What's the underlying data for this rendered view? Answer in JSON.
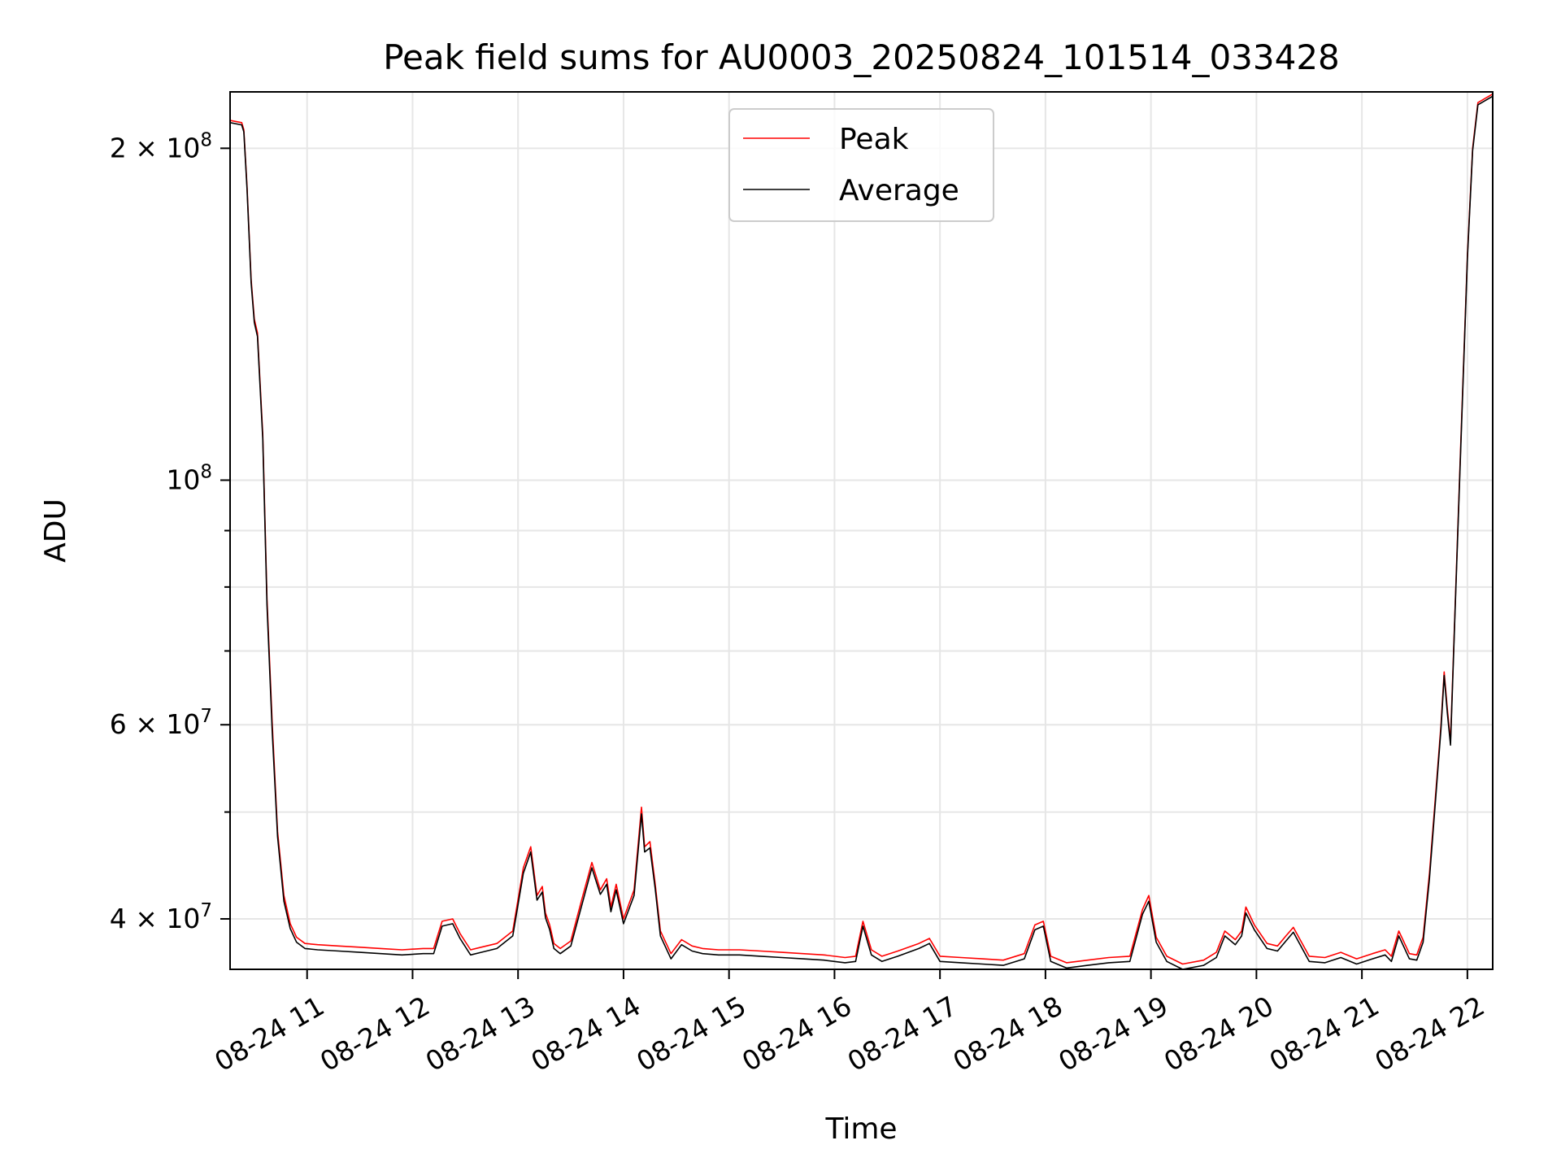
{
  "chart_data": {
    "type": "line",
    "title": "Peak field sums for AU0003_20250824_101514_033428",
    "xlabel": "Time",
    "ylabel": "ADU",
    "yscale": "log",
    "ylim": [
      36000000,
      225000000
    ],
    "xlim": [
      10.27,
      22.24
    ],
    "grid": true,
    "legend": "upper-center",
    "colors": {
      "Peak": "#ff0000",
      "Average": "#000000"
    },
    "x_ticks": [
      {
        "v": 11,
        "label": "08-24 11"
      },
      {
        "v": 12,
        "label": "08-24 12"
      },
      {
        "v": 13,
        "label": "08-24 13"
      },
      {
        "v": 14,
        "label": "08-24 14"
      },
      {
        "v": 15,
        "label": "08-24 15"
      },
      {
        "v": 16,
        "label": "08-24 16"
      },
      {
        "v": 17,
        "label": "08-24 17"
      },
      {
        "v": 18,
        "label": "08-24 18"
      },
      {
        "v": 19,
        "label": "08-24 19"
      },
      {
        "v": 20,
        "label": "08-24 20"
      },
      {
        "v": 21,
        "label": "08-24 21"
      },
      {
        "v": 22,
        "label": "08-24 22"
      }
    ],
    "y_major_ticks": [
      {
        "v": 40000000,
        "base": "4 × 10",
        "exp": "7"
      },
      {
        "v": 60000000,
        "base": "6 × 10",
        "exp": "7"
      },
      {
        "v": 100000000,
        "base": "10",
        "exp": "8"
      },
      {
        "v": 200000000,
        "base": "2 × 10",
        "exp": "8"
      }
    ],
    "y_minor_ticks": [
      50000000,
      70000000,
      80000000,
      90000000
    ],
    "series": [
      {
        "name": "Peak",
        "x": [
          10.27,
          10.38,
          10.4,
          10.43,
          10.47,
          10.5,
          10.53,
          10.58,
          10.62,
          10.67,
          10.72,
          10.78,
          10.84,
          10.9,
          10.98,
          11.1,
          11.3,
          11.5,
          11.7,
          11.9,
          12.1,
          12.2,
          12.28,
          12.38,
          12.45,
          12.55,
          12.65,
          12.8,
          12.95,
          13.05,
          13.12,
          13.18,
          13.23,
          13.26,
          13.3,
          13.34,
          13.4,
          13.5,
          13.6,
          13.7,
          13.78,
          13.84,
          13.88,
          13.93,
          14.0,
          14.1,
          14.17,
          14.2,
          14.25,
          14.3,
          14.35,
          14.45,
          14.55,
          14.65,
          14.75,
          14.9,
          15.1,
          15.3,
          15.5,
          15.7,
          15.9,
          16.1,
          16.2,
          16.27,
          16.35,
          16.45,
          16.6,
          16.8,
          16.9,
          17.0,
          17.2,
          17.4,
          17.6,
          17.8,
          17.9,
          17.98,
          18.05,
          18.2,
          18.4,
          18.6,
          18.8,
          18.92,
          18.98,
          19.05,
          19.15,
          19.3,
          19.5,
          19.62,
          19.7,
          19.8,
          19.86,
          19.9,
          19.98,
          20.1,
          20.2,
          20.28,
          20.35,
          20.5,
          20.65,
          20.8,
          20.95,
          21.1,
          21.22,
          21.28,
          21.35,
          21.45,
          21.52,
          21.58,
          21.64,
          21.7,
          21.75,
          21.78,
          21.81,
          21.84,
          21.88,
          21.94,
          22.0,
          22.05,
          22.1,
          22.24
        ],
        "y": [
          212000000,
          211000000,
          208000000,
          185000000,
          152000000,
          140000000,
          136000000,
          110000000,
          78000000,
          60000000,
          48000000,
          42000000,
          39600000,
          38500000,
          38000000,
          37900000,
          37800000,
          37700000,
          37600000,
          37500000,
          37600000,
          37600000,
          39800000,
          40000000,
          38800000,
          37500000,
          37700000,
          38000000,
          39000000,
          44500000,
          46500000,
          42000000,
          42800000,
          40500000,
          39500000,
          38000000,
          37600000,
          38200000,
          41500000,
          45000000,
          42500000,
          43500000,
          41000000,
          43000000,
          40000000,
          42500000,
          50500000,
          46500000,
          47000000,
          43000000,
          39000000,
          37200000,
          38300000,
          37800000,
          37600000,
          37500000,
          37500000,
          37400000,
          37300000,
          37200000,
          37100000,
          36900000,
          37000000,
          39800000,
          37500000,
          37000000,
          37400000,
          38000000,
          38400000,
          37000000,
          36900000,
          36800000,
          36700000,
          37200000,
          39500000,
          39800000,
          37000000,
          36500000,
          36700000,
          36900000,
          37000000,
          40800000,
          42000000,
          38500000,
          37000000,
          36400000,
          36700000,
          37300000,
          39000000,
          38300000,
          39000000,
          41000000,
          39500000,
          38000000,
          37800000,
          38600000,
          39300000,
          37000000,
          36900000,
          37300000,
          36800000,
          37200000,
          37500000,
          37000000,
          39000000,
          37200000,
          37100000,
          38500000,
          44000000,
          52000000,
          60000000,
          67000000,
          62000000,
          58000000,
          75000000,
          110000000,
          160000000,
          200000000,
          220000000,
          224000000
        ]
      },
      {
        "name": "Average",
        "x": [
          10.27,
          10.38,
          10.4,
          10.43,
          10.47,
          10.5,
          10.53,
          10.58,
          10.62,
          10.67,
          10.72,
          10.78,
          10.84,
          10.9,
          10.98,
          11.1,
          11.3,
          11.5,
          11.7,
          11.9,
          12.1,
          12.2,
          12.28,
          12.38,
          12.45,
          12.55,
          12.65,
          12.8,
          12.95,
          13.05,
          13.12,
          13.18,
          13.23,
          13.26,
          13.3,
          13.34,
          13.4,
          13.5,
          13.6,
          13.7,
          13.78,
          13.84,
          13.88,
          13.93,
          14.0,
          14.1,
          14.17,
          14.2,
          14.25,
          14.3,
          14.35,
          14.45,
          14.55,
          14.65,
          14.75,
          14.9,
          15.1,
          15.3,
          15.5,
          15.7,
          15.9,
          16.1,
          16.2,
          16.27,
          16.35,
          16.45,
          16.6,
          16.8,
          16.9,
          17.0,
          17.2,
          17.4,
          17.6,
          17.8,
          17.9,
          17.98,
          18.05,
          18.2,
          18.4,
          18.6,
          18.8,
          18.92,
          18.98,
          19.05,
          19.15,
          19.3,
          19.5,
          19.62,
          19.7,
          19.8,
          19.86,
          19.9,
          19.98,
          20.1,
          20.2,
          20.28,
          20.35,
          20.5,
          20.65,
          20.8,
          20.95,
          21.1,
          21.22,
          21.28,
          21.35,
          21.45,
          21.52,
          21.58,
          21.64,
          21.7,
          21.75,
          21.78,
          21.81,
          21.84,
          21.88,
          21.94,
          22.0,
          22.05,
          22.1,
          22.24
        ],
        "y": [
          211000000,
          210000000,
          207000000,
          184000000,
          151000000,
          139000000,
          135000000,
          109000000,
          77000000,
          59000000,
          47500000,
          41500000,
          39200000,
          38100000,
          37600000,
          37500000,
          37400000,
          37300000,
          37200000,
          37100000,
          37200000,
          37200000,
          39400000,
          39600000,
          38400000,
          37100000,
          37300000,
          37600000,
          38600000,
          44000000,
          46000000,
          41600000,
          42300000,
          40100000,
          39100000,
          37600000,
          37200000,
          37800000,
          41000000,
          44500000,
          42100000,
          43000000,
          40600000,
          42500000,
          39600000,
          42000000,
          49800000,
          46000000,
          46400000,
          42600000,
          38600000,
          36800000,
          37900000,
          37400000,
          37200000,
          37100000,
          37100000,
          37000000,
          36900000,
          36800000,
          36700000,
          36500000,
          36600000,
          39400000,
          37100000,
          36600000,
          37000000,
          37600000,
          38000000,
          36600000,
          36500000,
          36400000,
          36300000,
          36800000,
          39100000,
          39400000,
          36600000,
          36100000,
          36300000,
          36500000,
          36600000,
          40400000,
          41500000,
          38100000,
          36600000,
          36000000,
          36300000,
          36900000,
          38600000,
          37900000,
          38600000,
          40500000,
          39100000,
          37600000,
          37400000,
          38200000,
          38900000,
          36600000,
          36500000,
          36900000,
          36400000,
          36800000,
          37100000,
          36600000,
          38600000,
          36800000,
          36700000,
          38100000,
          43500000,
          51500000,
          59500000,
          66500000,
          61500000,
          57500000,
          74500000,
          109000000,
          159000000,
          199000000,
          219000000,
          223000000
        ]
      }
    ]
  }
}
